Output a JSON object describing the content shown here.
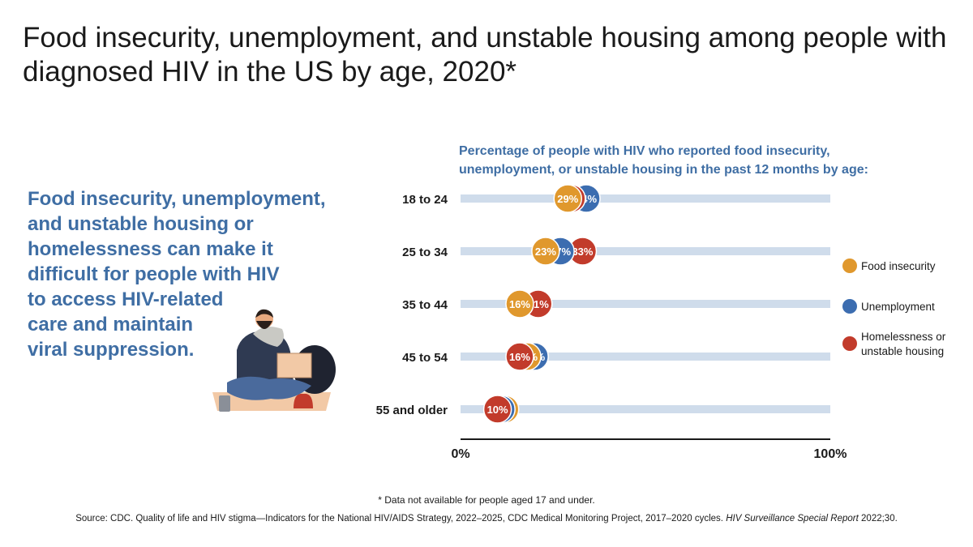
{
  "title": "Food insecurity, unemployment, and unstable housing among people with diagnosed HIV in the US by age, 2020*",
  "callout": "Food insecurity, unemployment,\nand unstable housing or\nhomelessness can make it\ndifficult for people with HIV\nto access HIV-related\ncare and maintain\nviral suppression.",
  "footnote": "* Data not available for people aged 17 and under.",
  "source": {
    "text": "Source: CDC. Quality of life and HIV stigma—Indicators for the National HIV/AIDS Strategy, 2022–2025, CDC Medical Monitoring Project, 2017–2020 cycles. ",
    "italic": "HIV Surveillance Special Report",
    "tail": " 2022;30."
  },
  "colors": {
    "food": "#e0982d",
    "unemployment": "#3c6db0",
    "housing": "#c23b2b",
    "track": "#cfdceb",
    "text_blue": "#3f6ea4"
  },
  "chart_data": {
    "type": "dot",
    "title": "Percentage of people with HIV who reported food insecurity,\nunemployment, or unstable housing in the past 12 months by age:",
    "categories": [
      "18 to 24",
      "25 to 34",
      "35 to 44",
      "45 to 54",
      "55 and older"
    ],
    "series": [
      {
        "name": "Food insecurity",
        "key": "food",
        "values": [
          29,
          23,
          16,
          18,
          12
        ]
      },
      {
        "name": "Unemployment",
        "key": "unemployment",
        "values": [
          34,
          27,
          21,
          20,
          11
        ]
      },
      {
        "name": "Homelessness or unstable housing",
        "key": "housing",
        "values": [
          30,
          33,
          21,
          16,
          10
        ]
      }
    ],
    "legend": [
      {
        "key": "food",
        "lines": [
          "Food insecurity"
        ]
      },
      {
        "key": "unemployment",
        "lines": [
          "Unemployment"
        ]
      },
      {
        "key": "housing",
        "lines": [
          "Homelessness or",
          "unstable housing"
        ]
      }
    ],
    "xlim": [
      0,
      100
    ],
    "x_tick_labels": [
      "0%",
      "100%"
    ],
    "legend_position": "right"
  }
}
